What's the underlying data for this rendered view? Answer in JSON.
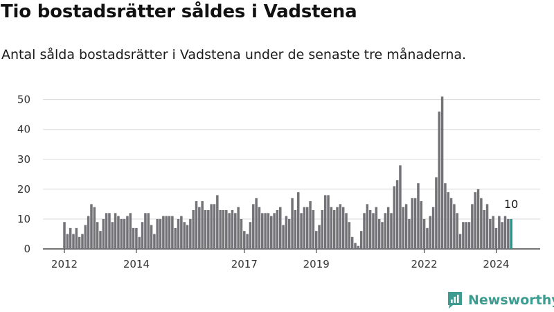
{
  "title": "Tio bostadsrätter såldes i Vadstena",
  "subtitle": "Antal sålda bostadsrätter i Vadstena under de senaste tre månaderna.",
  "brand": {
    "name": "Newsworthy",
    "icon": "newsworthy-logo-icon",
    "color": "#3d9b8f"
  },
  "chart_data": {
    "type": "bar",
    "x_start": "2012-01",
    "x_end": "2024-04",
    "x_unit": "month",
    "ylim": [
      0,
      52
    ],
    "yticks": [
      0,
      10,
      20,
      30,
      40,
      50
    ],
    "xticks": [
      "2012",
      "2014",
      "2017",
      "2019",
      "2022",
      "2024"
    ],
    "bar_color": "#737276",
    "highlight_color": "#21958a",
    "grid": true,
    "highlight_label": "10",
    "values": [
      9,
      5,
      7,
      5,
      7,
      4,
      5,
      8,
      11,
      15,
      14,
      9,
      6,
      10,
      12,
      12,
      9,
      12,
      11,
      10,
      10,
      11,
      12,
      7,
      7,
      4,
      9,
      12,
      12,
      8,
      5,
      10,
      10,
      11,
      11,
      11,
      11,
      7,
      10,
      11,
      9,
      8,
      10,
      13,
      16,
      14,
      16,
      13,
      13,
      15,
      15,
      18,
      13,
      13,
      13,
      12,
      13,
      12,
      14,
      10,
      6,
      5,
      9,
      15,
      17,
      14,
      12,
      12,
      12,
      11,
      12,
      13,
      14,
      8,
      11,
      10,
      17,
      13,
      19,
      12,
      14,
      14,
      16,
      13,
      6,
      8,
      13,
      18,
      18,
      14,
      13,
      14,
      15,
      14,
      12,
      9,
      4,
      2,
      1,
      6,
      12,
      15,
      13,
      12,
      14,
      10,
      9,
      12,
      14,
      12,
      21,
      23,
      28,
      14,
      15,
      10,
      17,
      17,
      22,
      16,
      10,
      7,
      11,
      14,
      24,
      46,
      51,
      22,
      19,
      17,
      15,
      12,
      5,
      9,
      9,
      9,
      15,
      19,
      20,
      17,
      13,
      15,
      10,
      11,
      7,
      11,
      9,
      11,
      10,
      10
    ]
  }
}
